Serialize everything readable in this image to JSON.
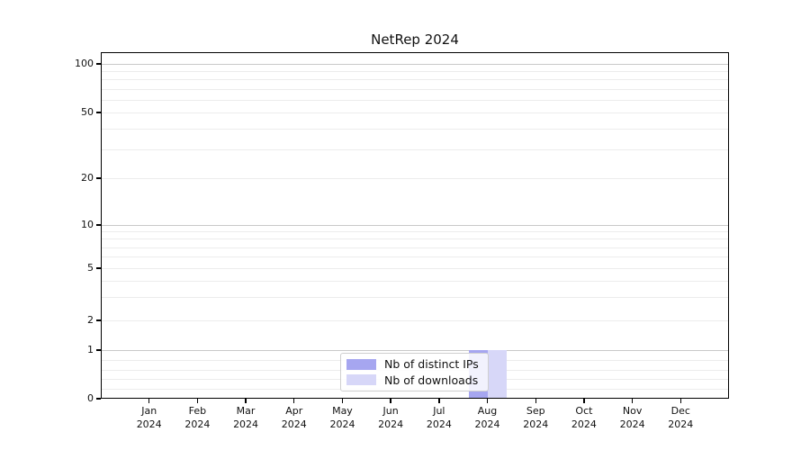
{
  "chart_data": {
    "type": "bar",
    "title": "NetRep 2024",
    "categories": [
      "Jan",
      "Feb",
      "Mar",
      "Apr",
      "May",
      "Jun",
      "Jul",
      "Aug",
      "Sep",
      "Oct",
      "Nov",
      "Dec"
    ],
    "x_year": "2024",
    "series": [
      {
        "name": "Nb of distinct IPs",
        "color": "#a6a6f0",
        "values": [
          0,
          0,
          0,
          0,
          0,
          0,
          0,
          1,
          0,
          0,
          0,
          0
        ]
      },
      {
        "name": "Nb of downloads",
        "color": "#d7d7f8",
        "values": [
          0,
          0,
          0,
          0,
          0,
          0,
          0,
          1,
          0,
          0,
          0,
          0
        ]
      }
    ],
    "yscale": "symlog",
    "yticks": [
      0,
      1,
      2,
      5,
      10,
      20,
      50,
      100
    ],
    "ylim": [
      0,
      120
    ],
    "grid": "horizontal major and minor gridlines",
    "legend_position": "lower center"
  },
  "colors": {
    "major_grid": "#c9c9c9",
    "minor_grid": "#ececec",
    "spine": "#000000",
    "background": "#ffffff"
  }
}
